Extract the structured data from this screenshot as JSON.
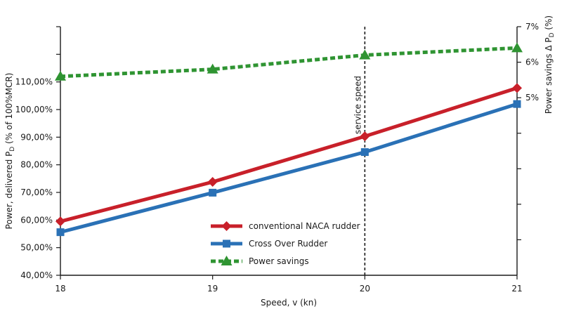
{
  "chart_data": {
    "type": "line",
    "x": [
      18,
      19,
      20,
      21
    ],
    "xlabel": "Speed, v (kn)",
    "xlim": [
      18,
      21
    ],
    "x_ticks": [
      "18",
      "19",
      "20",
      "21"
    ],
    "ylabel_left": "Power, delivered PD (% of 100%MCR)",
    "ylabel_left_main": "Power, delivered P",
    "ylabel_left_sub": "D",
    "ylabel_left_tail": " (% of 100%MCR)",
    "ylim_left": [
      40,
      130
    ],
    "y_ticks_left": [
      {
        "value": 40,
        "label": "40,00%"
      },
      {
        "value": 50,
        "label": "50,00%"
      },
      {
        "value": 60,
        "label": "60,00%"
      },
      {
        "value": 70,
        "label": "70,00%"
      },
      {
        "value": 80,
        "label": "80,00%"
      },
      {
        "value": 90,
        "label": "90,00%"
      },
      {
        "value": 100,
        "label": "100,00%"
      },
      {
        "value": 110,
        "label": "110,00%"
      },
      {
        "value": 120,
        "label": ""
      },
      {
        "value": 130,
        "label": ""
      }
    ],
    "ylabel_right": "Power savings ΔPD (%)",
    "ylabel_right_main": "Power savings Δ P",
    "ylabel_right_sub": "D",
    "ylabel_right_tail": " (%)",
    "ylim_right": [
      0,
      7
    ],
    "y_ticks_right": [
      {
        "value": 1,
        "label": ""
      },
      {
        "value": 2,
        "label": ""
      },
      {
        "value": 3,
        "label": ""
      },
      {
        "value": 4,
        "label": ""
      },
      {
        "value": 5,
        "label": "5%"
      },
      {
        "value": 6,
        "label": "6%"
      },
      {
        "value": 7,
        "label": "7%"
      }
    ],
    "series": [
      {
        "name": "conventional NACA rudder",
        "axis": "left",
        "color": "#c8202a",
        "marker": "diamond",
        "dashed": false,
        "values": [
          59.5,
          73.8,
          90.3,
          107.8
        ]
      },
      {
        "name": "Cross Over Rudder",
        "axis": "left",
        "color": "#2a71b6",
        "marker": "square",
        "dashed": false,
        "values": [
          55.6,
          69.9,
          84.6,
          102.0
        ]
      },
      {
        "name": "Power savings",
        "axis": "right",
        "color": "#2f9432",
        "marker": "triangle",
        "dashed": true,
        "values": [
          5.6,
          5.8,
          6.2,
          6.4
        ]
      }
    ],
    "annotations": [
      {
        "text": "service speed",
        "x": 20,
        "style": "dashed-vertical-line"
      }
    ],
    "legend_position": "center-bottom",
    "grid": false
  }
}
